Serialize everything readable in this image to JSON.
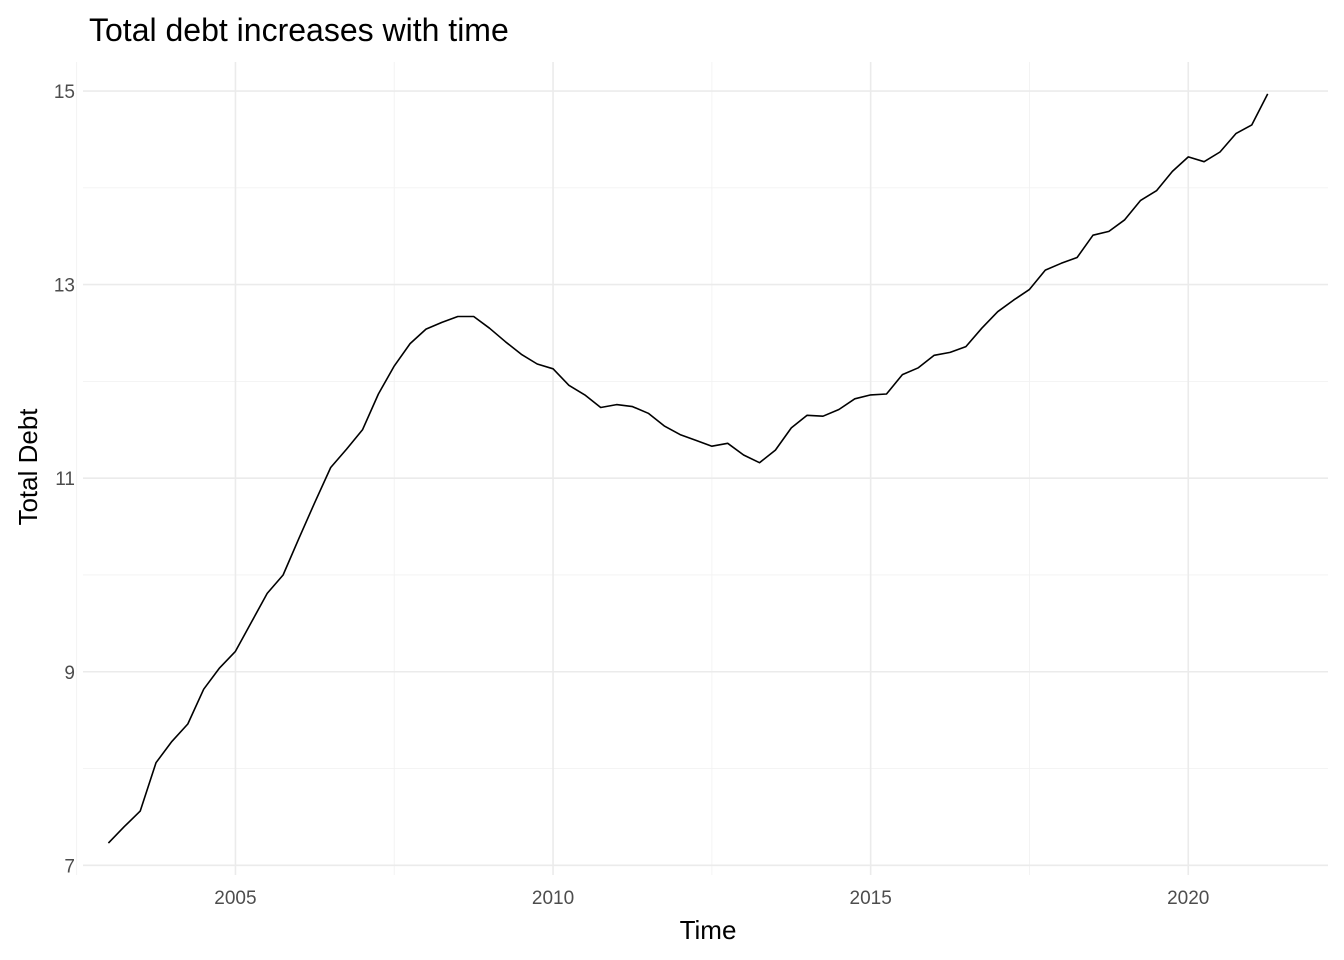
{
  "chart_data": {
    "type": "line",
    "title": "Total debt increases with time",
    "xlabel": "Time",
    "ylabel": "Total Debt",
    "xlim": [
      2002.6,
      2022.2
    ],
    "ylim": [
      6.9,
      15.3
    ],
    "x_ticks": [
      2005,
      2010,
      2015,
      2020
    ],
    "x_tick_labels": [
      "2005",
      "2010",
      "2015",
      "2020"
    ],
    "x_minor_ticks": [
      2002.5,
      2007.5,
      2012.5,
      2017.5
    ],
    "y_ticks": [
      7,
      9,
      11,
      13,
      15
    ],
    "y_tick_labels": [
      "7",
      "9",
      "11",
      "13",
      "15"
    ],
    "y_minor_ticks": [
      8,
      10,
      12,
      14
    ],
    "grid": true,
    "legend": "none",
    "colors": {
      "line": "#000000",
      "grid": "#ebebeb",
      "text": "#4d4d4d"
    },
    "series": [
      {
        "x": [
          2003.0,
          2003.25,
          2003.5,
          2003.75,
          2004.0,
          2004.25,
          2004.5,
          2004.75,
          2005.0,
          2005.25,
          2005.5,
          2005.75,
          2006.0,
          2006.25,
          2006.5,
          2006.75,
          2007.0,
          2007.25,
          2007.5,
          2007.75,
          2008.0,
          2008.25,
          2008.5,
          2008.75,
          2009.0,
          2009.25,
          2009.5,
          2009.75,
          2010.0,
          2010.25,
          2010.5,
          2010.75,
          2011.0,
          2011.25,
          2011.5,
          2011.75,
          2012.0,
          2012.25,
          2012.5,
          2012.75,
          2013.0,
          2013.25,
          2013.5,
          2013.75,
          2014.0,
          2014.25,
          2014.5,
          2014.75,
          2015.0,
          2015.25,
          2015.5,
          2015.75,
          2016.0,
          2016.25,
          2016.5,
          2016.75,
          2017.0,
          2017.25,
          2017.5,
          2017.75,
          2018.0,
          2018.25,
          2018.5,
          2018.75,
          2019.0,
          2019.25,
          2019.5,
          2019.75,
          2020.0,
          2020.25,
          2020.5,
          2020.75,
          2021.0,
          2021.25
        ],
        "values": [
          7.23,
          7.4,
          7.56,
          8.06,
          8.28,
          8.46,
          8.82,
          9.04,
          9.21,
          9.51,
          9.81,
          10.0,
          10.38,
          10.75,
          11.11,
          11.3,
          11.5,
          11.87,
          12.16,
          12.39,
          12.54,
          12.61,
          12.67,
          12.67,
          12.55,
          12.41,
          12.28,
          12.18,
          12.13,
          11.96,
          11.86,
          11.73,
          11.76,
          11.74,
          11.67,
          11.54,
          11.45,
          11.39,
          11.33,
          11.36,
          11.24,
          11.16,
          11.29,
          11.52,
          11.65,
          11.64,
          11.71,
          11.82,
          11.86,
          11.87,
          12.07,
          12.14,
          12.27,
          12.3,
          12.36,
          12.55,
          12.72,
          12.84,
          12.95,
          13.15,
          13.22,
          13.28,
          13.51,
          13.55,
          13.67,
          13.87,
          13.97,
          14.17,
          14.32,
          14.27,
          14.37,
          14.56,
          14.65,
          14.97
        ]
      }
    ]
  }
}
